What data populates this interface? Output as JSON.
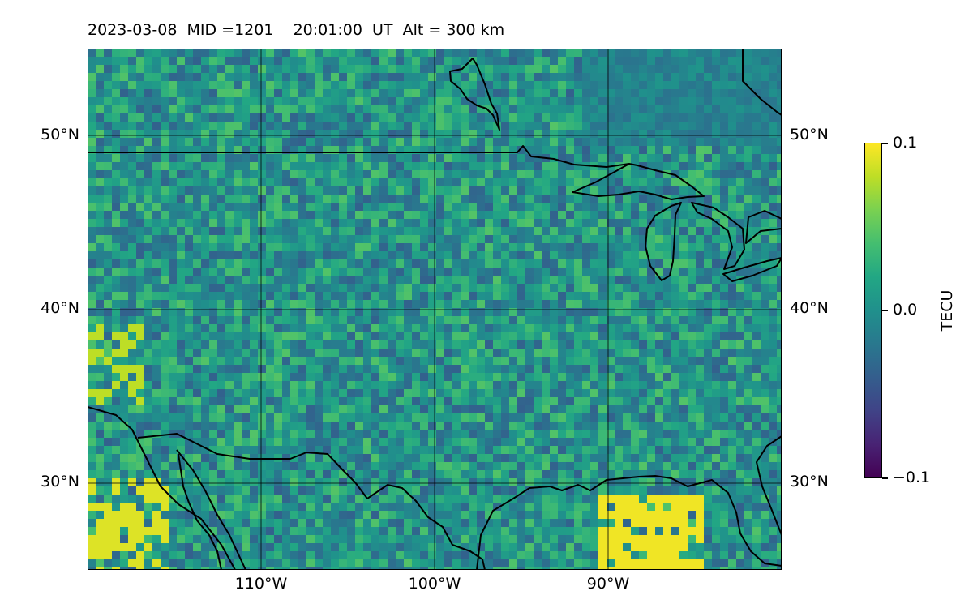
{
  "title": "2023-03-08  MID =1201    20:01:00  UT  Alt = 300 km",
  "map": {
    "lat_labels": [
      "50°N",
      "40°N",
      "30°N"
    ],
    "lon_labels": [
      "110°W",
      "100°W",
      "90°W"
    ],
    "lon_range": [
      -120,
      -80
    ],
    "lat_range": [
      25,
      55
    ],
    "gridlines": true,
    "features": [
      "coastlines",
      "country-borders",
      "great-lakes"
    ]
  },
  "colorbar": {
    "label": "TECU",
    "colormap": "viridis",
    "min": -0.1,
    "max": 0.1,
    "tick_labels": [
      "0.1",
      "0.0",
      "−0.1"
    ],
    "tick_values": [
      0.1,
      0.0,
      -0.1
    ]
  }
}
